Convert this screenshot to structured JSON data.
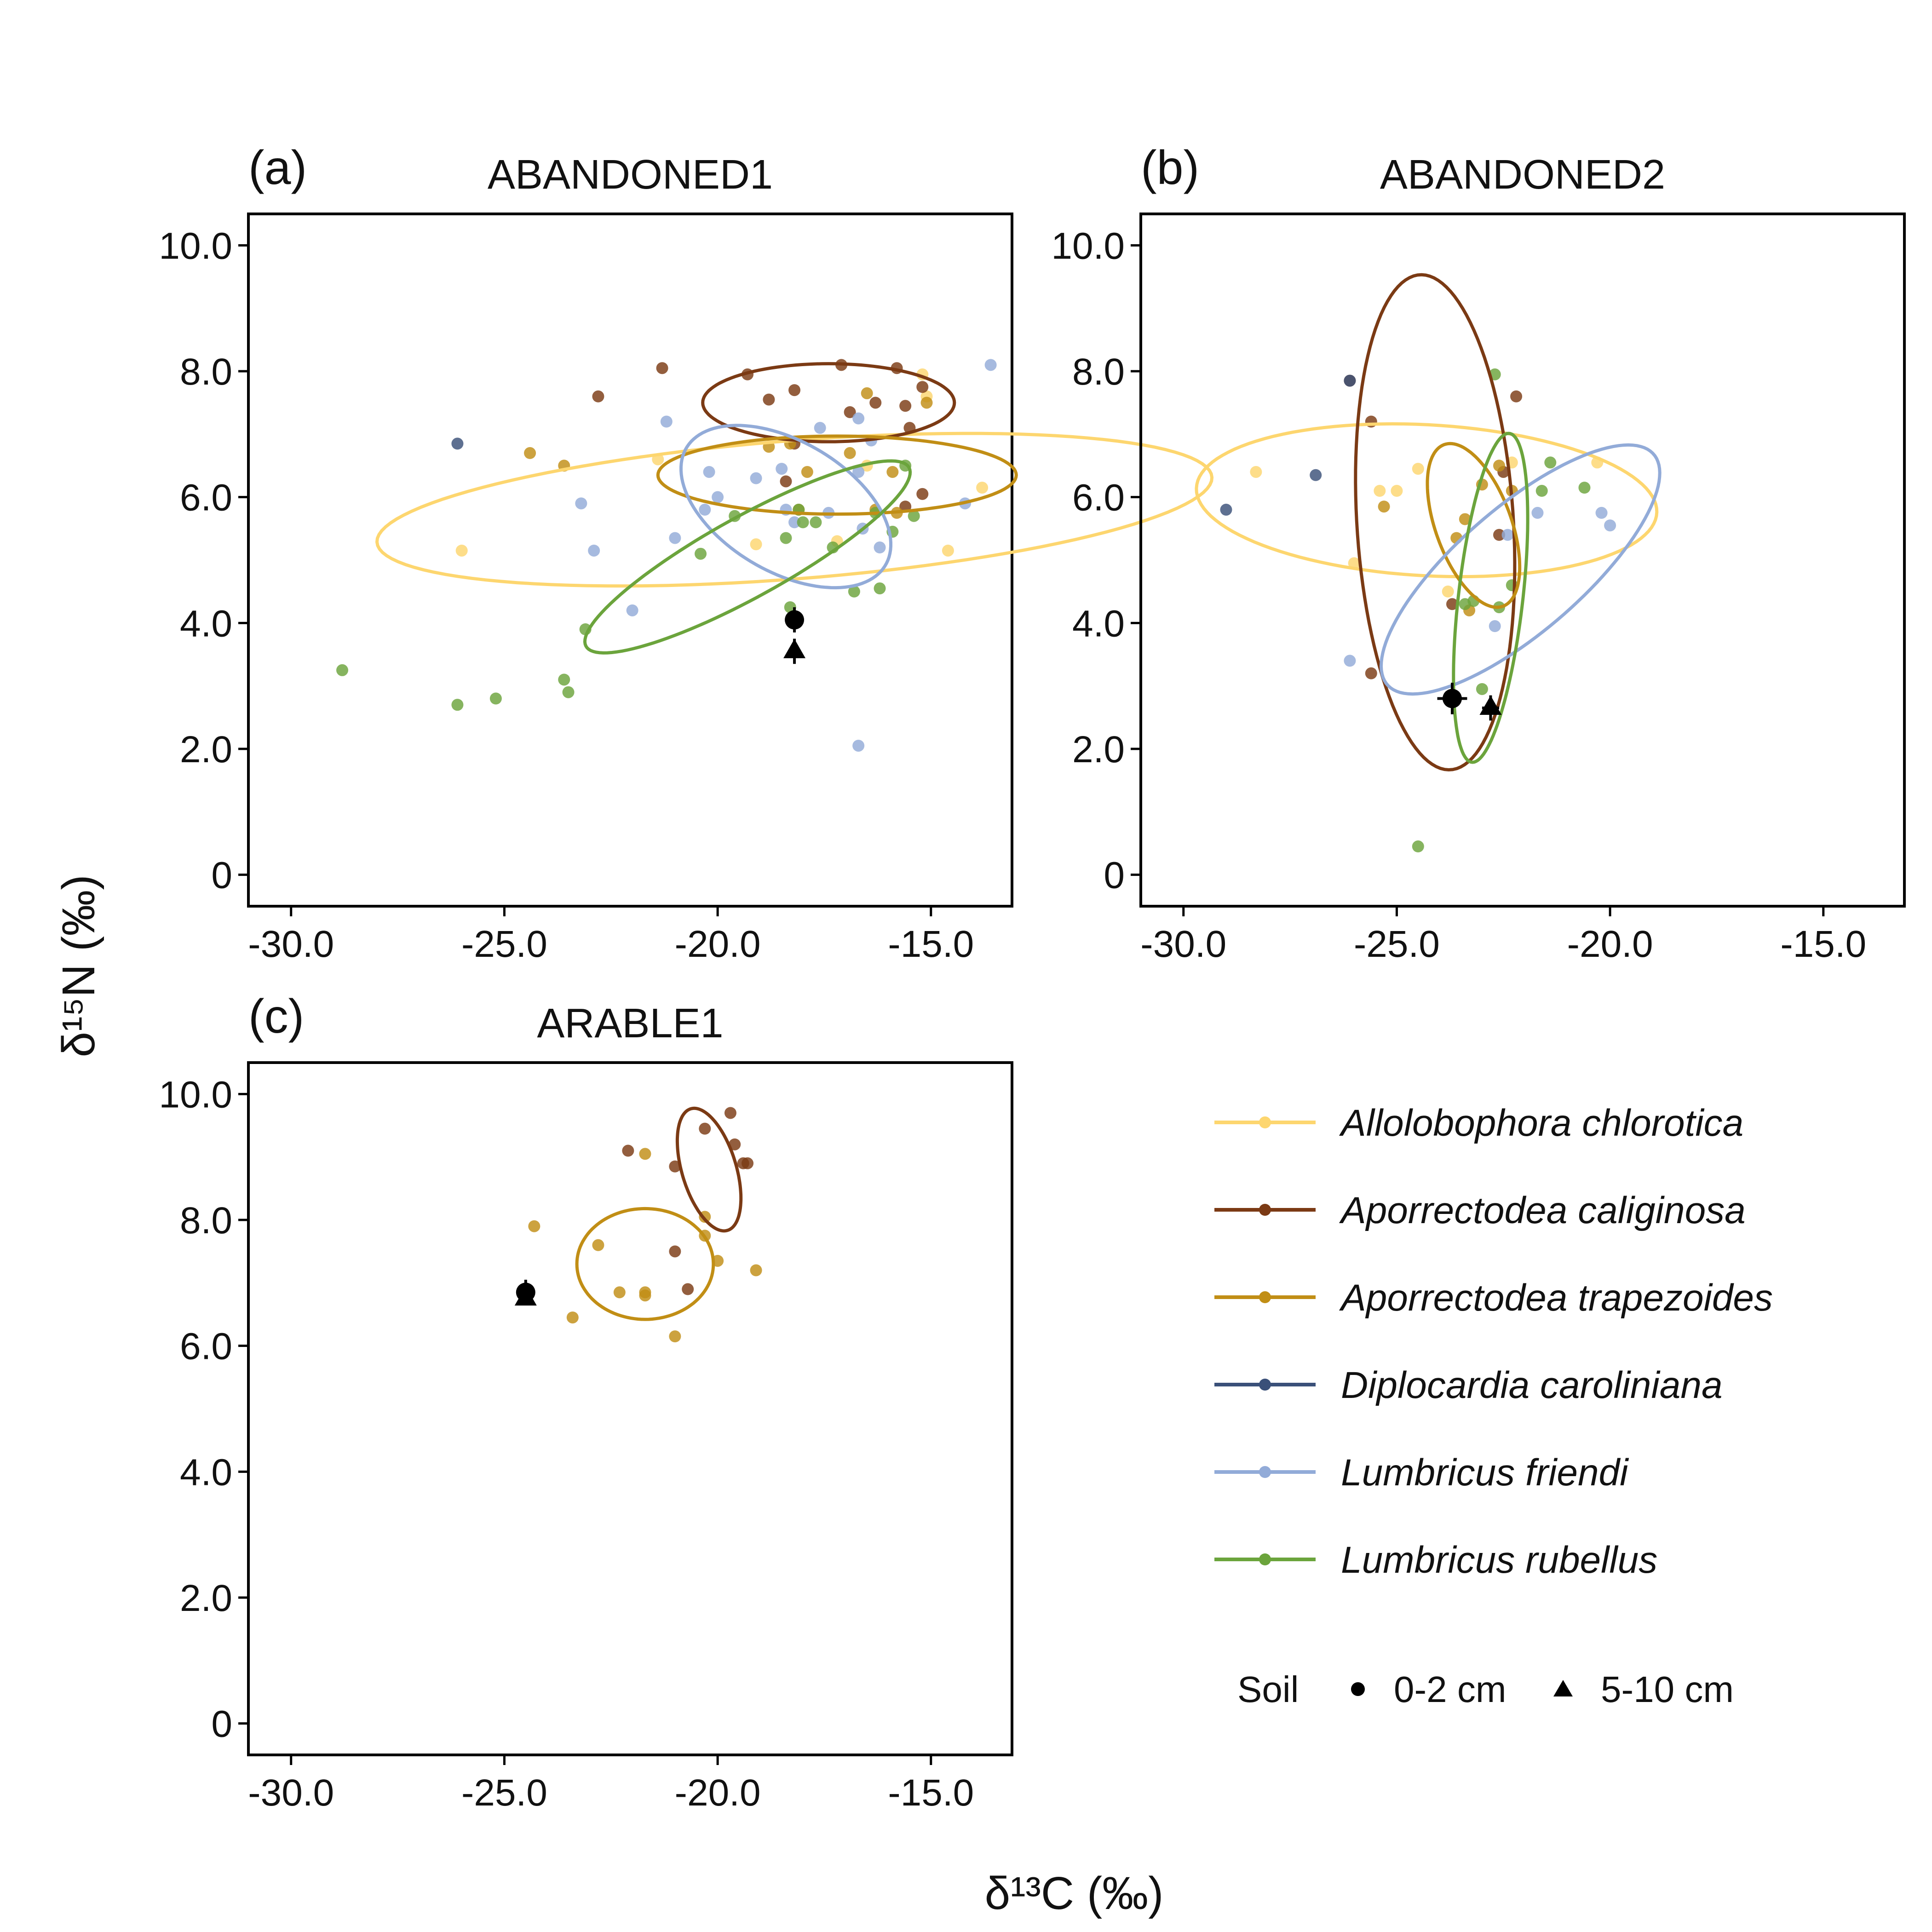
{
  "figure": {
    "xlabel": "δ¹³C (‰)",
    "ylabel": "δ¹⁵N (‰)"
  },
  "legend": {
    "species": [
      {
        "name": "Allolobophora chlorotica",
        "color": "#FDD66F"
      },
      {
        "name": "Aporrectodea caliginosa",
        "color": "#7B3A14"
      },
      {
        "name": "Aporrectodea trapezoides",
        "color": "#C18E15"
      },
      {
        "name": "Diplocardia caroliniana",
        "color": "#3A5079"
      },
      {
        "name": "Lumbricus friendi",
        "color": "#92ABD8"
      },
      {
        "name": "Lumbricus rubellus",
        "color": "#6BA43C"
      }
    ],
    "soil_title": "Soil",
    "soil_items": [
      {
        "label": "0-2 cm",
        "shape": "circle"
      },
      {
        "label": "5-10 cm",
        "shape": "triangle"
      }
    ]
  },
  "chart_data": [
    {
      "type": "scatter",
      "letter": "(a)",
      "title": "ABANDONED1",
      "xlim": [
        -31,
        -13.1
      ],
      "ylim": [
        -0.5,
        10.5
      ],
      "xticks": [
        -30,
        -25,
        -20,
        -15
      ],
      "xtick_labels": [
        "-30.0",
        "-25.0",
        "-20.0",
        "-15.0"
      ],
      "yticks": [
        0,
        2,
        4,
        6,
        8,
        10
      ],
      "ytick_labels": [
        "0",
        "2.0",
        "4.0",
        "6.0",
        "8.0",
        "10.0"
      ],
      "series": [
        {
          "name": "Allolobophora chlorotica",
          "points": [
            [
              -26,
              5.15
            ],
            [
              -21.4,
              6.6
            ],
            [
              -19.1,
              5.25
            ],
            [
              -17.2,
              5.3
            ],
            [
              -16.5,
              6.5
            ],
            [
              -15.2,
              7.95
            ],
            [
              -15.1,
              7.6
            ],
            [
              -14.6,
              5.15
            ],
            [
              -13.8,
              6.15
            ]
          ],
          "ellipse": {
            "cx": -18.2,
            "cy": 5.8,
            "rx": 9.8,
            "ry": 1.1,
            "angle": 3
          }
        },
        {
          "name": "Aporrectodea caliginosa",
          "points": [
            [
              -22.8,
              7.6
            ],
            [
              -21.3,
              8.05
            ],
            [
              -19.3,
              7.95
            ],
            [
              -18.8,
              7.55
            ],
            [
              -18.2,
              7.7
            ],
            [
              -17.1,
              8.1
            ],
            [
              -16.9,
              7.35
            ],
            [
              -16.3,
              7.5
            ],
            [
              -15.8,
              8.05
            ],
            [
              -15.6,
              7.45
            ],
            [
              -15.5,
              7.1
            ],
            [
              -15.2,
              7.75
            ],
            [
              -15.2,
              6.05
            ],
            [
              -15.6,
              5.85
            ],
            [
              -18.4,
              6.25
            ],
            [
              -18.2,
              6.85
            ]
          ],
          "ellipse": {
            "cx": -17.4,
            "cy": 7.5,
            "rx": 2.95,
            "ry": 0.62,
            "angle": 0
          }
        },
        {
          "name": "Aporrectodea trapezoides",
          "points": [
            [
              -24.4,
              6.7
            ],
            [
              -23.6,
              6.5
            ],
            [
              -18.8,
              6.8
            ],
            [
              -18.3,
              6.85
            ],
            [
              -17.9,
              6.4
            ],
            [
              -18.1,
              5.8
            ],
            [
              -16.9,
              6.7
            ],
            [
              -16.5,
              7.65
            ],
            [
              -16.3,
              5.8
            ],
            [
              -15.9,
              6.4
            ],
            [
              -15.8,
              5.75
            ],
            [
              -15.1,
              7.5
            ]
          ],
          "ellipse": {
            "cx": -17.2,
            "cy": 6.35,
            "rx": 4.2,
            "ry": 0.62,
            "angle": 0
          }
        },
        {
          "name": "Diplocardia caroliniana",
          "points": [
            [
              -26.1,
              6.85
            ]
          ],
          "ellipse": null
        },
        {
          "name": "Lumbricus friendi",
          "points": [
            [
              -23.2,
              5.9
            ],
            [
              -22.9,
              5.15
            ],
            [
              -22,
              4.2
            ],
            [
              -21.2,
              7.2
            ],
            [
              -21,
              5.35
            ],
            [
              -20.2,
              6.4
            ],
            [
              -20.3,
              5.8
            ],
            [
              -20,
              6
            ],
            [
              -19.1,
              6.3
            ],
            [
              -18.5,
              6.45
            ],
            [
              -18.4,
              5.8
            ],
            [
              -18.2,
              5.6
            ],
            [
              -17.6,
              7.1
            ],
            [
              -17.4,
              5.75
            ],
            [
              -16.7,
              6.4
            ],
            [
              -16.7,
              7.25
            ],
            [
              -16.6,
              5.5
            ],
            [
              -16.4,
              6.9
            ],
            [
              -16.2,
              5.2
            ],
            [
              -14.2,
              5.9
            ],
            [
              -13.6,
              8.1
            ],
            [
              -16.7,
              2.05
            ]
          ],
          "ellipse": {
            "cx": -18.4,
            "cy": 5.85,
            "rx": 2.55,
            "ry": 1.1,
            "angle": -17
          }
        },
        {
          "name": "Lumbricus rubellus",
          "points": [
            [
              -28.8,
              3.25
            ],
            [
              -26.1,
              2.7
            ],
            [
              -25.2,
              2.8
            ],
            [
              -23.6,
              3.1
            ],
            [
              -23.5,
              2.9
            ],
            [
              -23.1,
              3.9
            ],
            [
              -20.4,
              5.1
            ],
            [
              -19.6,
              5.7
            ],
            [
              -18.4,
              5.35
            ],
            [
              -18.1,
              5.8
            ],
            [
              -18,
              5.6
            ],
            [
              -17.7,
              5.6
            ],
            [
              -17.3,
              5.2
            ],
            [
              -16.8,
              4.5
            ],
            [
              -16.3,
              5.75
            ],
            [
              -16.2,
              4.55
            ],
            [
              -15.9,
              5.45
            ],
            [
              -15.6,
              6.5
            ],
            [
              -15.4,
              5.7
            ],
            [
              -18.3,
              4.25
            ]
          ],
          "ellipse": {
            "cx": -19.3,
            "cy": 5.05,
            "rx": 4.05,
            "ry": 0.68,
            "angle": 20
          }
        }
      ],
      "soil": [
        {
          "shape": "circle",
          "x": -18.2,
          "y": 4.05,
          "xerr": 0.1,
          "yerr": 0.2
        },
        {
          "shape": "triangle",
          "x": -18.2,
          "y": 3.55,
          "xerr": 0,
          "yerr": 0.2
        }
      ]
    },
    {
      "type": "scatter",
      "letter": "(b)",
      "title": "ABANDONED2",
      "xlim": [
        -31,
        -13.1
      ],
      "ylim": [
        -0.5,
        10.5
      ],
      "xticks": [
        -30,
        -25,
        -20,
        -15
      ],
      "xtick_labels": [
        "-30.0",
        "-25.0",
        "-20.0",
        "-15.0"
      ],
      "yticks": [
        0,
        2,
        4,
        6,
        8,
        10
      ],
      "ytick_labels": [
        "0",
        "2.0",
        "4.0",
        "6.0",
        "8.0",
        "10.0"
      ],
      "series": [
        {
          "name": "Allolobophora chlorotica",
          "points": [
            [
              -28.3,
              6.4
            ],
            [
              -26,
              4.95
            ],
            [
              -25.4,
              6.1
            ],
            [
              -25,
              6.1
            ],
            [
              -24.5,
              6.45
            ],
            [
              -23.8,
              4.5
            ],
            [
              -22.3,
              6.55
            ],
            [
              -20.3,
              6.55
            ]
          ],
          "ellipse": {
            "cx": -24.3,
            "cy": 5.95,
            "rx": 5.4,
            "ry": 1.2,
            "angle": -2
          }
        },
        {
          "name": "Aporrectodea caliginosa",
          "points": [
            [
              -26.1,
              7.85
            ],
            [
              -25.6,
              7.2
            ],
            [
              -25.6,
              3.2
            ],
            [
              -23.7,
              4.3
            ],
            [
              -22.6,
              5.4
            ],
            [
              -22.2,
              7.6
            ],
            [
              -22.5,
              6.4
            ]
          ],
          "ellipse": {
            "cx": -24.1,
            "cy": 5.6,
            "rx": 3.95,
            "ry": 1.83,
            "angle": -84
          }
        },
        {
          "name": "Aporrectodea trapezoides",
          "points": [
            [
              -25.3,
              5.85
            ],
            [
              -23.6,
              5.35
            ],
            [
              -23.4,
              5.65
            ],
            [
              -23,
              6.2
            ],
            [
              -23.3,
              4.2
            ],
            [
              -22.6,
              6.5
            ],
            [
              -22.3,
              6.1
            ]
          ],
          "ellipse": {
            "cx": -23.2,
            "cy": 5.55,
            "rx": 1.48,
            "ry": 0.82,
            "angle": -55
          }
        },
        {
          "name": "Diplocardia caroliniana",
          "points": [
            [
              -29,
              5.8
            ],
            [
              -26.1,
              7.85
            ],
            [
              -26.9,
              6.35
            ]
          ],
          "ellipse": null
        },
        {
          "name": "Lumbricus friendi",
          "points": [
            [
              -26.1,
              3.4
            ],
            [
              -22.7,
              3.95
            ],
            [
              -22.4,
              5.4
            ],
            [
              -21.7,
              5.75
            ],
            [
              -20.2,
              5.75
            ],
            [
              -20,
              5.55
            ]
          ],
          "ellipse": {
            "cx": -22.1,
            "cy": 4.85,
            "rx": 3.65,
            "ry": 1.12,
            "angle": 28
          }
        },
        {
          "name": "Lumbricus rubellus",
          "points": [
            [
              -24.5,
              0.45
            ],
            [
              -23.4,
              4.3
            ],
            [
              -23.2,
              4.35
            ],
            [
              -22.7,
              7.95
            ],
            [
              -22.6,
              4.25
            ],
            [
              -22.3,
              4.6
            ],
            [
              -21.4,
              6.55
            ],
            [
              -21.6,
              6.1
            ],
            [
              -20.6,
              6.15
            ],
            [
              -23,
              2.95
            ]
          ],
          "ellipse": {
            "cx": -22.8,
            "cy": 4.4,
            "rx": 2.65,
            "ry": 0.75,
            "angle": 80
          }
        }
      ],
      "soil": [
        {
          "shape": "circle",
          "x": -23.7,
          "y": 2.8,
          "xerr": 0.35,
          "yerr": 0.25
        },
        {
          "shape": "triangle",
          "x": -22.8,
          "y": 2.65,
          "xerr": 0.2,
          "yerr": 0.2
        }
      ]
    },
    {
      "type": "scatter",
      "letter": "(c)",
      "title": "ARABLE1",
      "xlim": [
        -31,
        -13.1
      ],
      "ylim": [
        -0.5,
        10.5
      ],
      "xticks": [
        -30,
        -25,
        -20,
        -15
      ],
      "xtick_labels": [
        "-30.0",
        "-25.0",
        "-20.0",
        "-15.0"
      ],
      "yticks": [
        0,
        2,
        4,
        6,
        8,
        10
      ],
      "ytick_labels": [
        "0",
        "2.0",
        "4.0",
        "6.0",
        "8.0",
        "10.0"
      ],
      "series": [
        {
          "name": "Aporrectodea caliginosa",
          "points": [
            [
              -22.1,
              9.1
            ],
            [
              -21,
              8.85
            ],
            [
              -20.3,
              9.45
            ],
            [
              -19.7,
              9.7
            ],
            [
              -19.6,
              9.2
            ],
            [
              -19.4,
              8.9
            ],
            [
              -19.3,
              8.9
            ],
            [
              -21,
              7.5
            ],
            [
              -20.7,
              6.9
            ]
          ],
          "ellipse": {
            "cx": -20.2,
            "cy": 8.8,
            "rx": 1.07,
            "ry": 0.6,
            "angle": -60
          }
        },
        {
          "name": "Aporrectodea trapezoides",
          "points": [
            [
              -24.3,
              7.9
            ],
            [
              -22.8,
              7.6
            ],
            [
              -22.3,
              6.85
            ],
            [
              -21.7,
              6.85
            ],
            [
              -21.7,
              9.05
            ],
            [
              -21.7,
              6.8
            ],
            [
              -20.3,
              8.05
            ],
            [
              -20.3,
              7.75
            ],
            [
              -20,
              7.35
            ],
            [
              -19.1,
              7.2
            ],
            [
              -21,
              6.15
            ],
            [
              -23.4,
              6.45
            ]
          ],
          "ellipse": {
            "cx": -21.7,
            "cy": 7.3,
            "rx": 1.6,
            "ry": 0.88,
            "angle": 0
          }
        }
      ],
      "soil": [
        {
          "shape": "circle",
          "x": -24.5,
          "y": 6.85,
          "xerr": 0,
          "yerr": 0.2
        },
        {
          "shape": "triangle",
          "x": -24.5,
          "y": 6.75,
          "xerr": 0,
          "yerr": 0
        }
      ]
    }
  ]
}
